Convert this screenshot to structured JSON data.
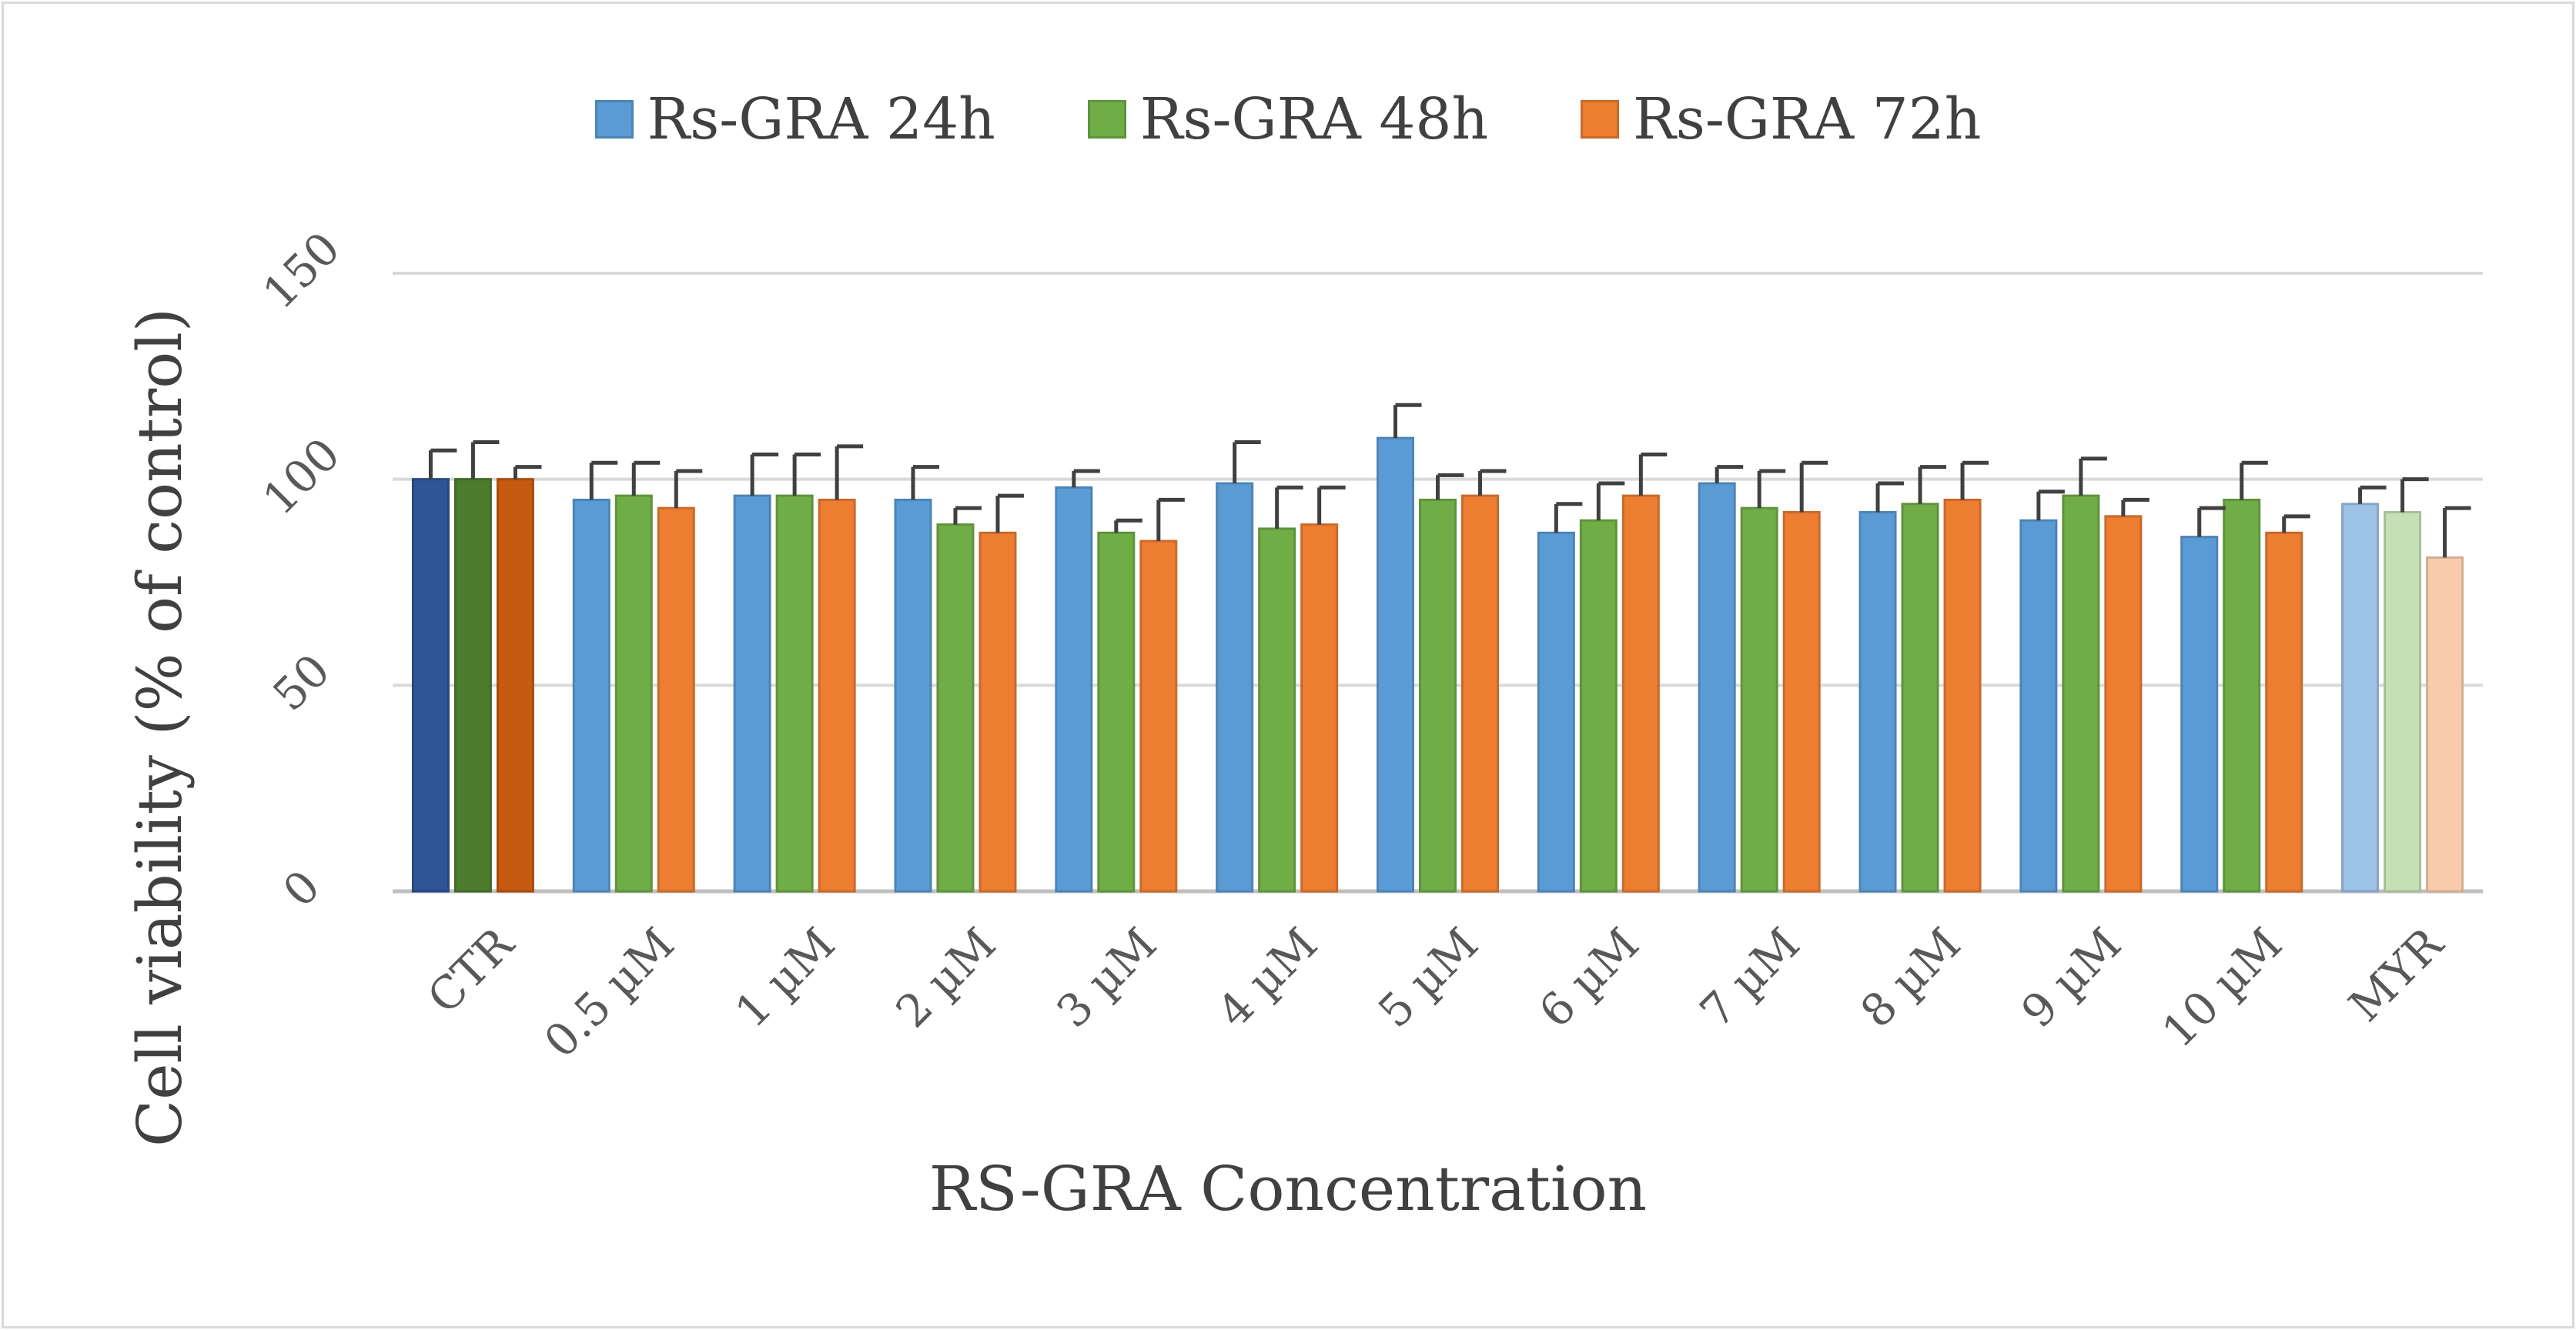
{
  "chart_data": {
    "type": "bar",
    "title": "",
    "xlabel": "RS-GRA Concentration",
    "ylabel": "Cell viability (% of control)",
    "ylim": [
      0,
      150
    ],
    "yticks": [
      "0",
      "50",
      "100",
      "150"
    ],
    "grid": true,
    "legend_position": "top-center",
    "categories": [
      "CTR",
      "0.5 µM",
      "1 µM",
      "2 µM",
      "3 µM",
      "4 µM",
      "5 µM",
      "6 µM",
      "7 µM",
      "8 µM",
      "9 µM",
      "10 µM",
      "MYR"
    ],
    "series": [
      {
        "name": "Rs-GRA 24h",
        "color": "#5b9bd5",
        "values": [
          100,
          95,
          96,
          95,
          98,
          99,
          110,
          87,
          99,
          92,
          90,
          86,
          94
        ],
        "errors": [
          7,
          9,
          10,
          8,
          4,
          10,
          8,
          7,
          4,
          7,
          7,
          7,
          4
        ]
      },
      {
        "name": "Rs-GRA 48h",
        "color": "#70ad47",
        "values": [
          100,
          96,
          96,
          89,
          87,
          88,
          95,
          90,
          93,
          94,
          96,
          95,
          92
        ],
        "errors": [
          9,
          8,
          10,
          4,
          3,
          10,
          6,
          9,
          9,
          9,
          9,
          9,
          8
        ]
      },
      {
        "name": "Rs-GRA 72h",
        "color": "#ed7d31",
        "values": [
          100,
          93,
          95,
          87,
          85,
          89,
          96,
          96,
          92,
          95,
          91,
          87,
          81
        ],
        "errors": [
          3,
          9,
          13,
          9,
          10,
          9,
          6,
          10,
          12,
          9,
          4,
          4,
          12
        ]
      }
    ],
    "highlight": {
      "CTR": [
        "#2f5597",
        "#4c7d2f",
        "#c55a11"
      ],
      "MYR": [
        "#9dc3e6",
        "#c5e0b4",
        "#f8cbad"
      ]
    }
  }
}
